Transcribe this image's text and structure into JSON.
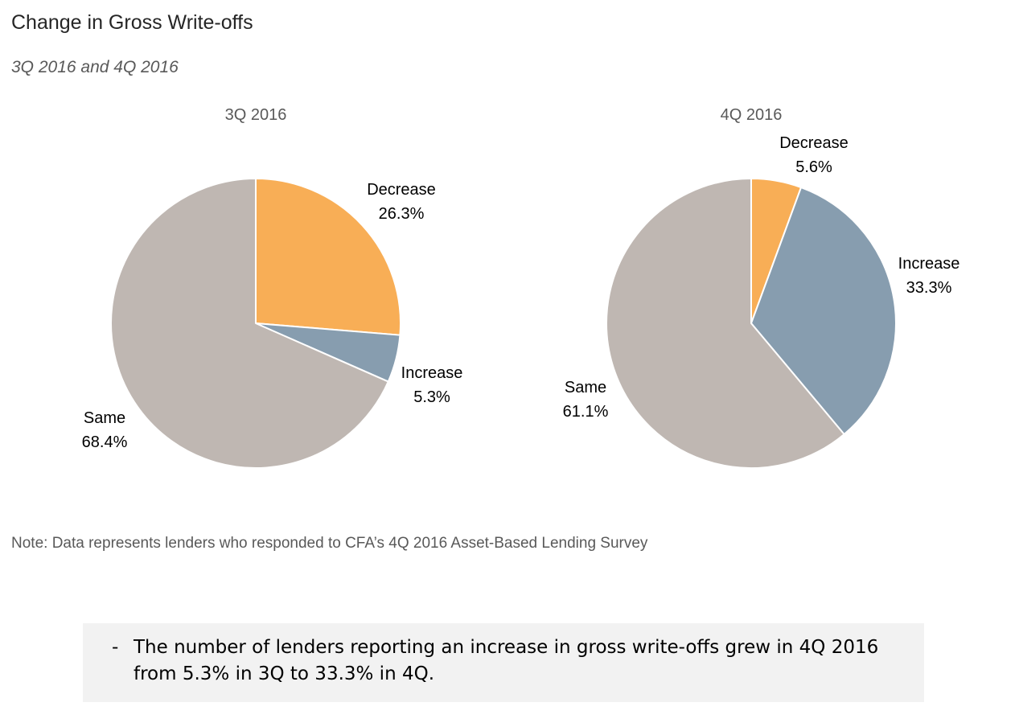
{
  "title": "Change in Gross Write-offs",
  "subtitle": "3Q 2016 and 4Q 2016",
  "note": "Note: Data represents lenders who responded to CFA’s 4Q 2016 Asset-Based Lending Survey",
  "callout": {
    "bullet": "-",
    "text": "The number of lenders reporting an increase in gross write-offs grew in 4Q 2016 from 5.3% in 3Q to 33.3% in 4Q."
  },
  "colors": {
    "Decrease": "#f8ae56",
    "Increase": "#879daf",
    "Same": "#bfb7b2"
  },
  "chart_data": [
    {
      "type": "pie",
      "title": "3Q 2016",
      "slices": [
        {
          "label": "Decrease",
          "value": 26.3,
          "display": "26.3%"
        },
        {
          "label": "Increase",
          "value": 5.3,
          "display": "5.3%"
        },
        {
          "label": "Same",
          "value": 68.4,
          "display": "68.4%"
        }
      ],
      "start": "12 o'clock, clockwise"
    },
    {
      "type": "pie",
      "title": "4Q 2016",
      "slices": [
        {
          "label": "Decrease",
          "value": 5.6,
          "display": "5.6%"
        },
        {
          "label": "Increase",
          "value": 33.3,
          "display": "33.3%"
        },
        {
          "label": "Same",
          "value": 61.1,
          "display": "61.1%"
        }
      ],
      "start": "12 o'clock, clockwise"
    }
  ]
}
